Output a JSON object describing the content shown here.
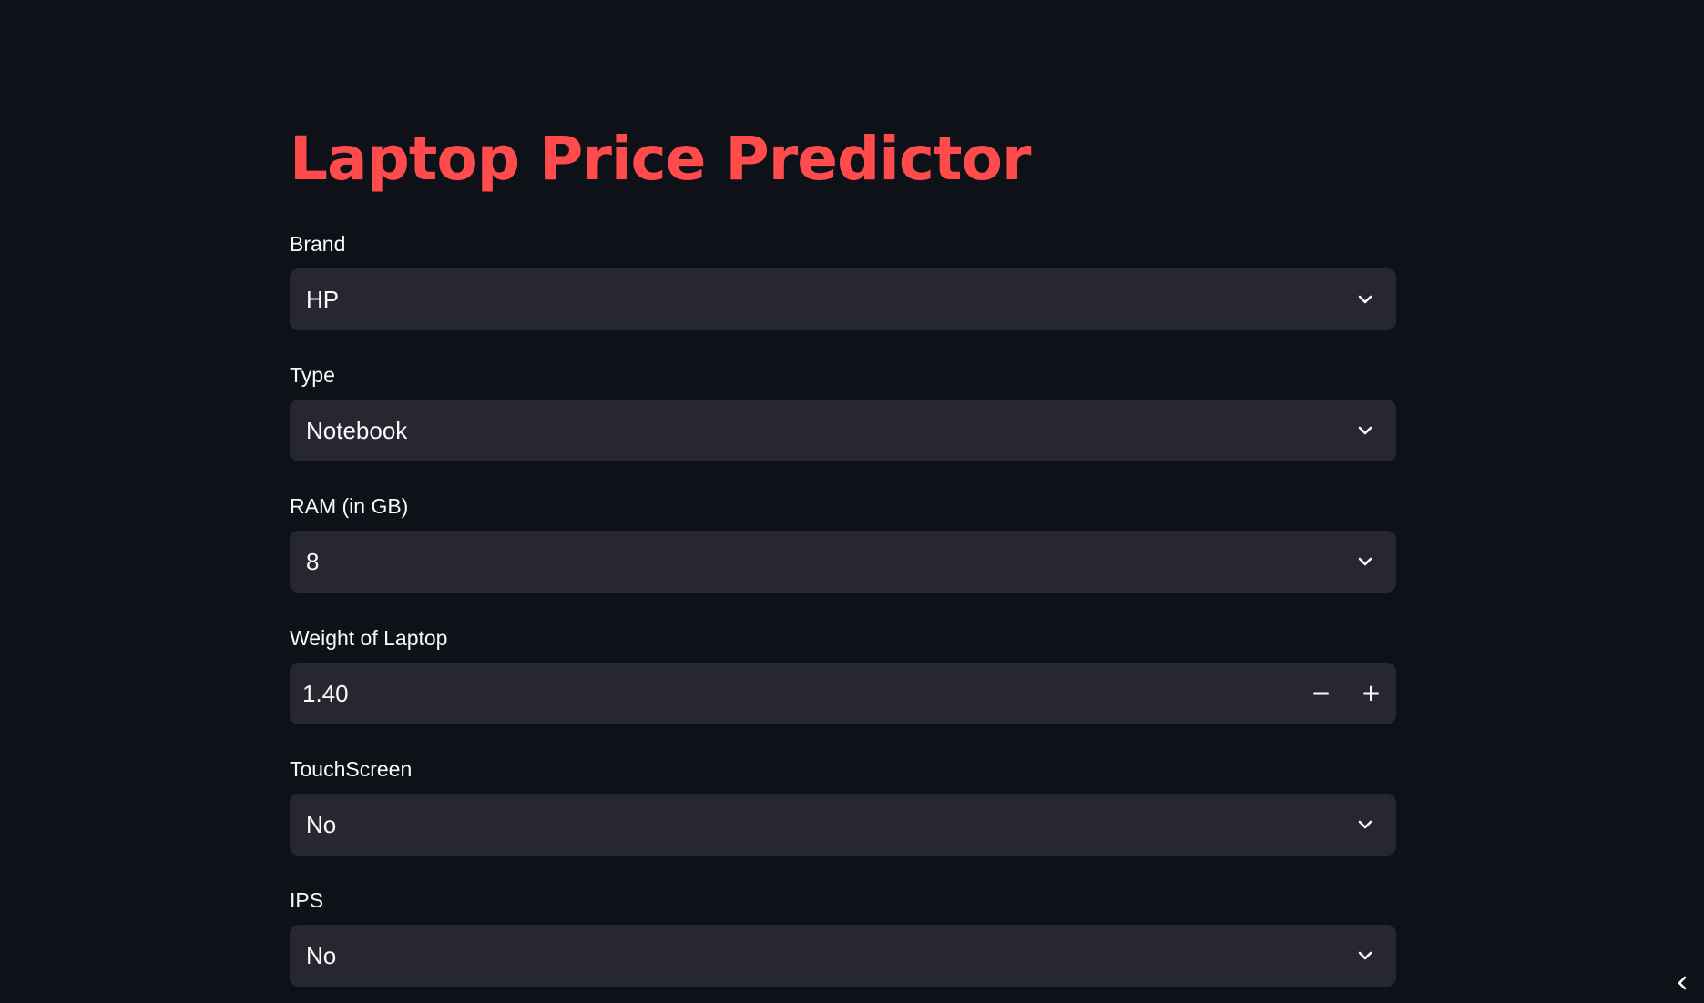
{
  "app": {
    "title": "Laptop Price Predictor"
  },
  "fields": [
    {
      "label": "Brand",
      "value": "HP",
      "kind": "select"
    },
    {
      "label": "Type",
      "value": "Notebook",
      "kind": "select"
    },
    {
      "label": "RAM (in GB)",
      "value": "8",
      "kind": "select"
    },
    {
      "label": "Weight of Laptop",
      "value": "1.40",
      "kind": "number"
    },
    {
      "label": "TouchScreen",
      "value": "No",
      "kind": "select"
    },
    {
      "label": "IPS",
      "value": "No",
      "kind": "select"
    }
  ],
  "stepper": {
    "decrement_label": "−",
    "increment_label": "+"
  },
  "icons": {
    "select": "chevron-down-icon",
    "collapse": "chevron-left-icon"
  },
  "colors": {
    "background": "#0e1117",
    "title": "#ff4b4b",
    "input_background": "#262730",
    "text": "#fafafa"
  }
}
